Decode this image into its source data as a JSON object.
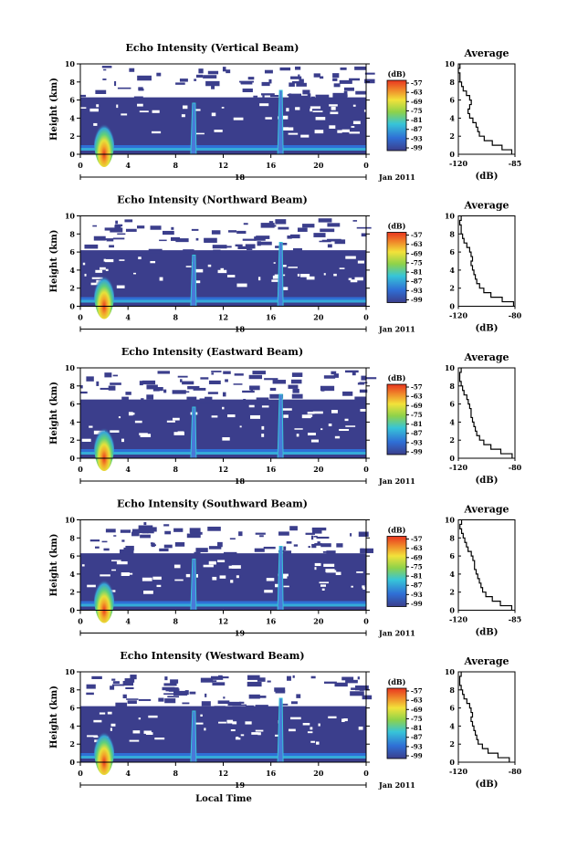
{
  "page": {
    "xlabel": "Local Time",
    "colors": {
      "background_field": "#3b3e8c",
      "accent_blue": "#2f6fd6",
      "accent_cyan": "#37c5d8",
      "accent_green": "#8ed24a",
      "accent_red": "#e8351f",
      "spike": "#4a78d8"
    }
  },
  "chart_data": [
    {
      "type": "heatmap",
      "title": "Echo Intensity (Vertical Beam)",
      "ylabel": "Height (km)",
      "ylim": [
        0,
        10
      ],
      "yticks": [
        "0",
        "2",
        "4",
        "6",
        "8",
        "10"
      ],
      "xlim": [
        0,
        24
      ],
      "xticks": [
        "0",
        "4",
        "8",
        "12",
        "16",
        "20",
        "0"
      ],
      "date_left": "",
      "date_mid": "18",
      "date_right": "Jan 2011",
      "colorbar": {
        "unit": "(dB)",
        "ticks": [
          "-57",
          "-63",
          "-69",
          "-75",
          "-81",
          "-87",
          "-93",
          "-99"
        ]
      },
      "echo_top_km": 6.3,
      "spikes_hours": [
        2,
        9.5,
        16.8
      ],
      "profile": {
        "title": "Average",
        "xlabel": "(dB)",
        "xlim": [
          -120,
          -85
        ],
        "xticks": [
          "-120",
          "-85"
        ],
        "yticks": [
          "0",
          "2",
          "4",
          "6",
          "8",
          "10"
        ],
        "heights": [
          0,
          0.5,
          1,
          1.5,
          2,
          2.5,
          3,
          3.5,
          4,
          4.5,
          5,
          5.5,
          6,
          6.5,
          7,
          7.5,
          8,
          8.5,
          9,
          9.5
        ],
        "values": [
          -87,
          -93,
          -99,
          -104,
          -107,
          -108,
          -109,
          -111,
          -113,
          -114,
          -113,
          -112,
          -113,
          -115,
          -117,
          -118,
          -119,
          -119,
          -120,
          -119
        ]
      }
    },
    {
      "type": "heatmap",
      "title": "Echo Intensity (Northward Beam)",
      "ylabel": "Height (km)",
      "ylim": [
        0,
        10
      ],
      "yticks": [
        "0",
        "2",
        "4",
        "6",
        "8",
        "10"
      ],
      "xlim": [
        0,
        24
      ],
      "xticks": [
        "0",
        "4",
        "8",
        "12",
        "16",
        "20",
        "0"
      ],
      "date_left": "",
      "date_mid": "18",
      "date_right": "Jan 2011",
      "colorbar": {
        "unit": "(dB)",
        "ticks": [
          "-57",
          "-63",
          "-69",
          "-75",
          "-81",
          "-87",
          "-93",
          "-99"
        ]
      },
      "echo_top_km": 6.2,
      "spikes_hours": [
        2,
        9.5,
        16.8
      ],
      "profile": {
        "title": "Average",
        "xlabel": "(dB)",
        "xlim": [
          -120,
          -80
        ],
        "xticks": [
          "-120",
          "-80"
        ],
        "yticks": [
          "0",
          "2",
          "4",
          "6",
          "8",
          "10"
        ],
        "heights": [
          0,
          0.5,
          1,
          1.5,
          2,
          2.5,
          3,
          3.5,
          4,
          4.5,
          5,
          5.5,
          6,
          6.5,
          7,
          7.5,
          8,
          8.5,
          9,
          9.5
        ],
        "values": [
          -81,
          -89,
          -97,
          -102,
          -105,
          -107,
          -108,
          -109,
          -110,
          -111,
          -110,
          -111,
          -112,
          -114,
          -116,
          -117,
          -118,
          -118,
          -119,
          -118
        ]
      }
    },
    {
      "type": "heatmap",
      "title": "Echo Intensity (Eastward Beam)",
      "ylabel": "Height (km)",
      "ylim": [
        0,
        10
      ],
      "yticks": [
        "0",
        "2",
        "4",
        "6",
        "8",
        "10"
      ],
      "xlim": [
        0,
        24
      ],
      "xticks": [
        "0",
        "4",
        "8",
        "12",
        "16",
        "20",
        "0"
      ],
      "date_left": "",
      "date_mid": "18",
      "date_right": "Jan 2011",
      "colorbar": {
        "unit": "(dB)",
        "ticks": [
          "-57",
          "-63",
          "-69",
          "-75",
          "-81",
          "-87",
          "-93",
          "-99"
        ]
      },
      "echo_top_km": 6.5,
      "spikes_hours": [
        2,
        9.5,
        16.8
      ],
      "profile": {
        "title": "Average",
        "xlabel": "(dB)",
        "xlim": [
          -120,
          -80
        ],
        "xticks": [
          "-120",
          "-80"
        ],
        "yticks": [
          "0",
          "2",
          "4",
          "6",
          "8",
          "10"
        ],
        "heights": [
          0,
          0.5,
          1,
          1.5,
          2,
          2.5,
          3,
          3.5,
          4,
          4.5,
          5,
          5.5,
          6,
          6.5,
          7,
          7.5,
          8,
          8.5,
          9,
          9.5
        ],
        "values": [
          -82,
          -90,
          -97,
          -102,
          -105,
          -107,
          -108,
          -109,
          -110,
          -111,
          -111,
          -112,
          -113,
          -114,
          -116,
          -117,
          -118,
          -119,
          -119,
          -118
        ]
      }
    },
    {
      "type": "heatmap",
      "title": "Echo Intensity (Southward Beam)",
      "ylabel": "Height (km)",
      "ylim": [
        0,
        10
      ],
      "yticks": [
        "0",
        "2",
        "4",
        "6",
        "8",
        "10"
      ],
      "xlim": [
        0,
        24
      ],
      "xticks": [
        "0",
        "4",
        "8",
        "12",
        "16",
        "20",
        "0"
      ],
      "date_left": "",
      "date_mid": "19",
      "date_right": "Jan 2011",
      "colorbar": {
        "unit": "(dB)",
        "ticks": [
          "-57",
          "-63",
          "-69",
          "-75",
          "-81",
          "-87",
          "-93",
          "-99"
        ]
      },
      "echo_top_km": 6.3,
      "spikes_hours": [
        2,
        9.5,
        16.8
      ],
      "profile": {
        "title": "Average",
        "xlabel": "(dB)",
        "xlim": [
          -120,
          -85
        ],
        "xticks": [
          "-120",
          "-85"
        ],
        "yticks": [
          "0",
          "2",
          "4",
          "6",
          "8",
          "10"
        ],
        "heights": [
          0,
          0.5,
          1,
          1.5,
          2,
          2.5,
          3,
          3.5,
          4,
          4.5,
          5,
          5.5,
          6,
          6.5,
          7,
          7.5,
          8,
          8.5,
          9,
          9.5
        ],
        "values": [
          -87,
          -94,
          -99,
          -103,
          -105,
          -106,
          -107,
          -108,
          -109,
          -110,
          -110,
          -111,
          -112,
          -114,
          -115,
          -116,
          -117,
          -118,
          -119,
          -118
        ]
      }
    },
    {
      "type": "heatmap",
      "title": "Echo Intensity (Westward Beam)",
      "ylabel": "Height (km)",
      "ylim": [
        0,
        10
      ],
      "yticks": [
        "0",
        "2",
        "4",
        "6",
        "8",
        "10"
      ],
      "xlim": [
        0,
        24
      ],
      "xticks": [
        "0",
        "4",
        "8",
        "12",
        "16",
        "20",
        "0"
      ],
      "date_left": "",
      "date_mid": "19",
      "date_right": "Jan 2011",
      "colorbar": {
        "unit": "(dB)",
        "ticks": [
          "-57",
          "-63",
          "-69",
          "-75",
          "-81",
          "-87",
          "-93",
          "-99"
        ]
      },
      "echo_top_km": 6.2,
      "spikes_hours": [
        2,
        9.5,
        16.8
      ],
      "profile": {
        "title": "Average",
        "xlabel": "(dB)",
        "xlim": [
          -120,
          -80
        ],
        "xticks": [
          "-120",
          "-80"
        ],
        "yticks": [
          "0",
          "2",
          "4",
          "6",
          "8",
          "10"
        ],
        "heights": [
          0,
          0.5,
          1,
          1.5,
          2,
          2.5,
          3,
          3.5,
          4,
          4.5,
          5,
          5.5,
          6,
          6.5,
          7,
          7.5,
          8,
          8.5,
          9,
          9.5
        ],
        "values": [
          -84,
          -92,
          -99,
          -103,
          -106,
          -107,
          -108,
          -109,
          -110,
          -111,
          -110,
          -111,
          -112,
          -114,
          -116,
          -117,
          -118,
          -119,
          -119,
          -118
        ]
      }
    }
  ]
}
